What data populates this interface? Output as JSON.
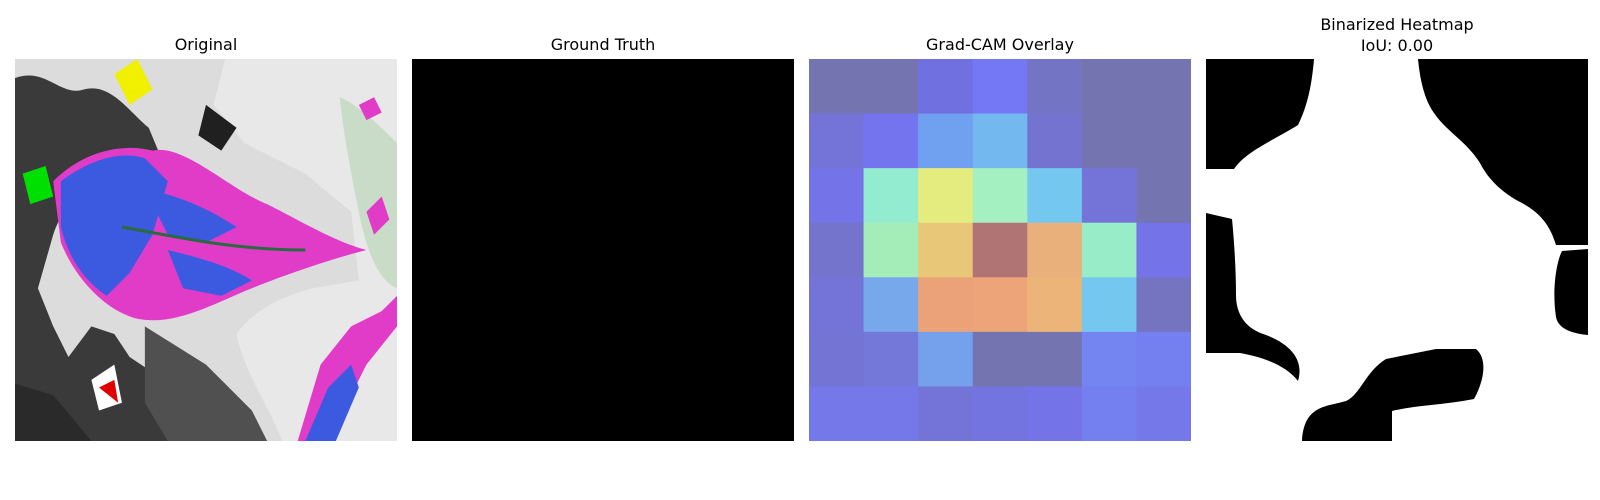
{
  "panels": [
    {
      "title": "Original"
    },
    {
      "title": "Ground Truth"
    },
    {
      "title": "Grad-CAM Overlay"
    },
    {
      "title": "Binarized Heatmap",
      "subtitle": "IoU: 0.00"
    }
  ],
  "colors": {
    "background": "#ffffff",
    "ground_truth_fill": "#000000",
    "binarized_foreground": "#ffffff",
    "binarized_background": "#000000"
  },
  "gradcam_grid": {
    "rows": 7,
    "cols": 7,
    "cells": [
      [
        "#7474b0",
        "#7474b0",
        "#7070e0",
        "#7478f4",
        "#7474c4",
        "#7474b0",
        "#7474b0"
      ],
      [
        "#7474d8",
        "#7474ee",
        "#70a0f0",
        "#74b8f0",
        "#7474d0",
        "#7474b0",
        "#7474b0"
      ],
      [
        "#7474e8",
        "#94ecd0",
        "#e4ec80",
        "#a4f0c0",
        "#74c8f0",
        "#7474d8",
        "#7474b0"
      ],
      [
        "#7474cc",
        "#a4ecb8",
        "#e8c878",
        "#b07474",
        "#eab07c",
        "#98ecc8",
        "#7474e8"
      ],
      [
        "#7474d8",
        "#78a8ec",
        "#eca278",
        "#eca478",
        "#ecb478",
        "#74c8f0",
        "#7474c0"
      ],
      [
        "#7474d4",
        "#7478d8",
        "#74a0ec",
        "#7474b0",
        "#7474b0",
        "#7484f0",
        "#7480f0"
      ],
      [
        "#7478e8",
        "#7478e8",
        "#7474d8",
        "#7474e0",
        "#7474e8",
        "#7480f0",
        "#7478e8"
      ]
    ]
  }
}
